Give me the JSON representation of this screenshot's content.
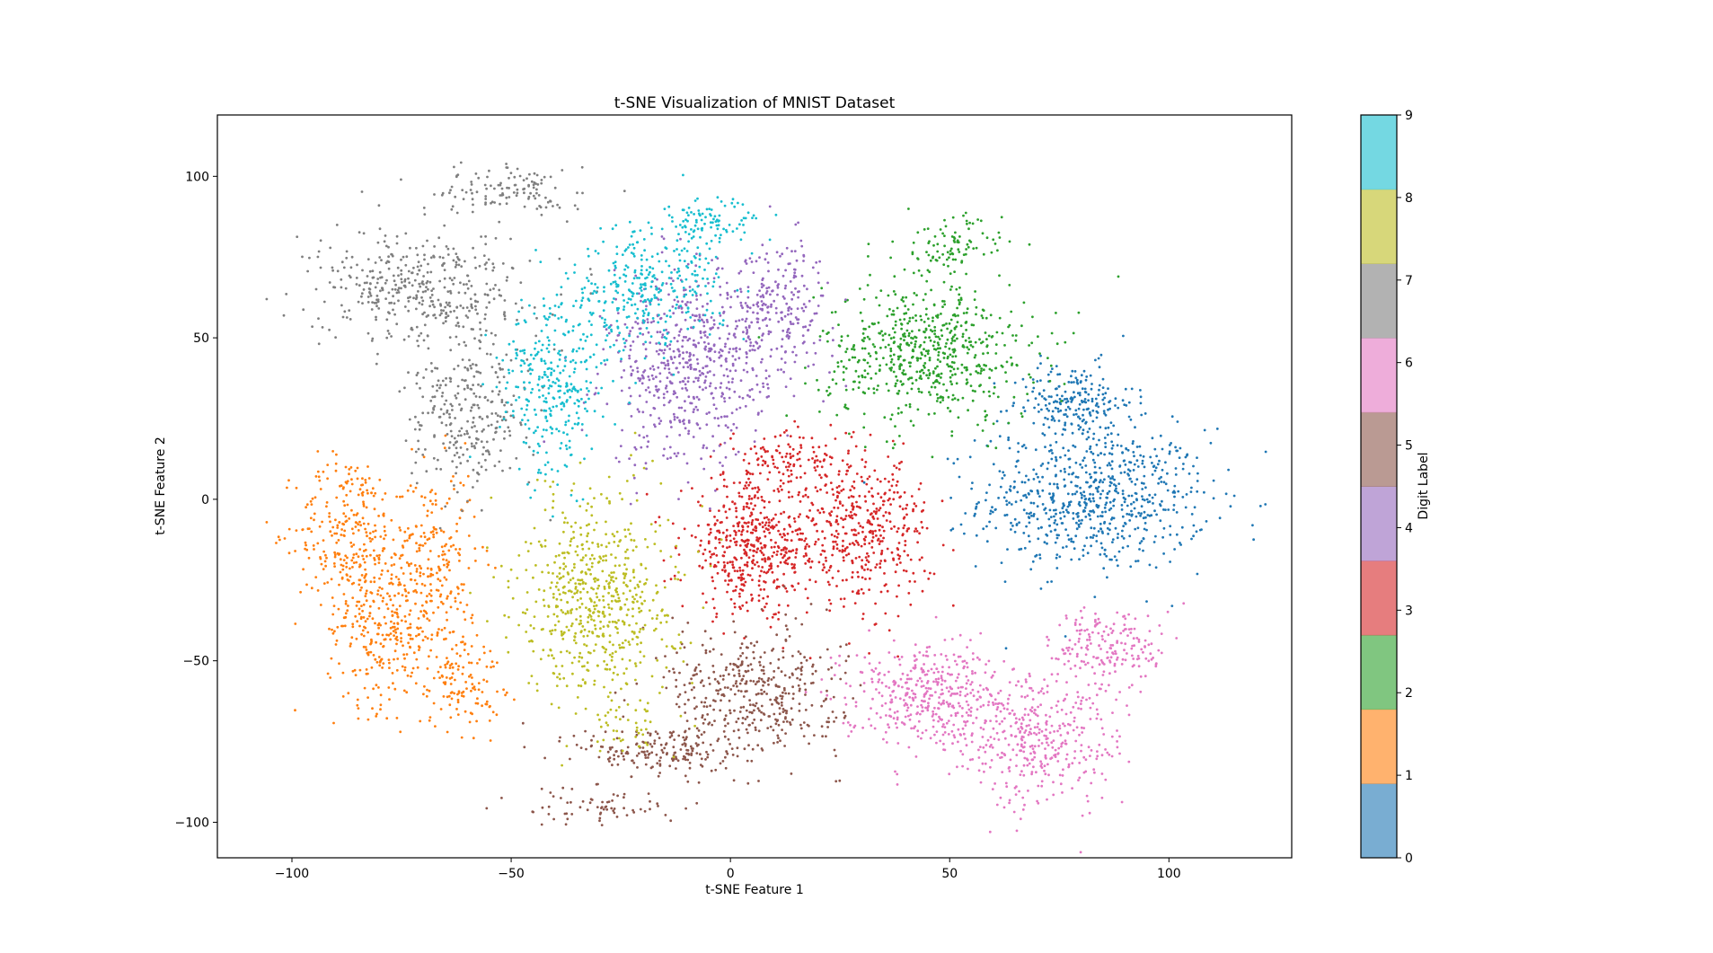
{
  "chart_data": {
    "type": "scatter",
    "title": "t-SNE Visualization of MNIST Dataset",
    "xlabel": "t-SNE Feature 1",
    "ylabel": "t-SNE Feature 2",
    "xlim": [
      -117,
      128
    ],
    "ylim": [
      -111,
      119
    ],
    "xticks": [
      -100,
      -50,
      0,
      50,
      100
    ],
    "yticks": [
      -100,
      -50,
      0,
      50,
      100
    ],
    "xtick_labels": [
      "−100",
      "−50",
      "0",
      "50",
      "100"
    ],
    "ytick_labels": [
      "−100",
      "−50",
      "0",
      "50",
      "100"
    ],
    "grid": false,
    "colorbar": {
      "label": "Digit Label",
      "range": [
        0,
        9
      ],
      "ticks": [
        "0",
        "1",
        "2",
        "3",
        "4",
        "5",
        "6",
        "7",
        "8",
        "9"
      ],
      "alpha": 0.6,
      "colors": [
        "#1f77b4",
        "#ff7f0e",
        "#2ca02c",
        "#d62728",
        "#9467bd",
        "#8c564b",
        "#e377c2",
        "#7f7f7f",
        "#bcbd22",
        "#17becf"
      ]
    },
    "series": [
      {
        "name": "0",
        "color": "#1f77b4",
        "clusters": [
          {
            "cx": 83,
            "cy": 0,
            "sx": 13,
            "sy": 11,
            "n": 700
          },
          {
            "cx": 78,
            "cy": 30,
            "sx": 7,
            "sy": 6,
            "n": 220
          }
        ]
      },
      {
        "name": "1",
        "color": "#ff7f0e",
        "clusters": [
          {
            "cx": -87,
            "cy": -10,
            "sx": 6,
            "sy": 12,
            "n": 260
          },
          {
            "cx": -80,
            "cy": -40,
            "sx": 6,
            "sy": 12,
            "n": 260
          },
          {
            "cx": -68,
            "cy": -20,
            "sx": 5,
            "sy": 15,
            "n": 240
          },
          {
            "cx": -62,
            "cy": -55,
            "sx": 5,
            "sy": 8,
            "n": 140
          }
        ]
      },
      {
        "name": "2",
        "color": "#2ca02c",
        "clusters": [
          {
            "cx": 45,
            "cy": 45,
            "sx": 12,
            "sy": 11,
            "n": 620
          },
          {
            "cx": 50,
            "cy": 78,
            "sx": 6,
            "sy": 5,
            "n": 100
          }
        ]
      },
      {
        "name": "3",
        "color": "#d62728",
        "clusters": [
          {
            "cx": 5,
            "cy": -15,
            "sx": 8,
            "sy": 10,
            "n": 500
          },
          {
            "cx": 30,
            "cy": -10,
            "sx": 8,
            "sy": 11,
            "n": 420
          },
          {
            "cx": 15,
            "cy": 12,
            "sx": 8,
            "sy": 5,
            "n": 130
          }
        ]
      },
      {
        "name": "4",
        "color": "#9467bd",
        "clusters": [
          {
            "cx": -10,
            "cy": 40,
            "sx": 9,
            "sy": 15,
            "n": 560
          },
          {
            "cx": 10,
            "cy": 60,
            "sx": 7,
            "sy": 10,
            "n": 260
          }
        ]
      },
      {
        "name": "5",
        "color": "#8c564b",
        "clusters": [
          {
            "cx": 5,
            "cy": -60,
            "sx": 10,
            "sy": 10,
            "n": 420
          },
          {
            "cx": -15,
            "cy": -78,
            "sx": 10,
            "sy": 4,
            "n": 180
          },
          {
            "cx": -30,
            "cy": -95,
            "sx": 9,
            "sy": 3,
            "n": 70
          }
        ]
      },
      {
        "name": "6",
        "color": "#e377c2",
        "clusters": [
          {
            "cx": 45,
            "cy": -60,
            "sx": 10,
            "sy": 8,
            "n": 420
          },
          {
            "cx": 70,
            "cy": -75,
            "sx": 10,
            "sy": 10,
            "n": 380
          },
          {
            "cx": 87,
            "cy": -45,
            "sx": 7,
            "sy": 6,
            "n": 180
          }
        ]
      },
      {
        "name": "7",
        "color": "#7f7f7f",
        "clusters": [
          {
            "cx": -70,
            "cy": 65,
            "sx": 12,
            "sy": 9,
            "n": 420
          },
          {
            "cx": -60,
            "cy": 25,
            "sx": 7,
            "sy": 11,
            "n": 280
          },
          {
            "cx": -50,
            "cy": 95,
            "sx": 8,
            "sy": 4,
            "n": 120
          }
        ]
      },
      {
        "name": "8",
        "color": "#bcbd22",
        "clusters": [
          {
            "cx": -30,
            "cy": -30,
            "sx": 9,
            "sy": 16,
            "n": 620
          },
          {
            "cx": -25,
            "cy": -70,
            "sx": 4,
            "sy": 4,
            "n": 40
          }
        ]
      },
      {
        "name": "9",
        "color": "#17becf",
        "clusters": [
          {
            "cx": -40,
            "cy": 35,
            "sx": 6,
            "sy": 14,
            "n": 320
          },
          {
            "cx": -20,
            "cy": 65,
            "sx": 9,
            "sy": 9,
            "n": 320
          },
          {
            "cx": -5,
            "cy": 85,
            "sx": 5,
            "sy": 4,
            "n": 100
          }
        ]
      }
    ]
  }
}
